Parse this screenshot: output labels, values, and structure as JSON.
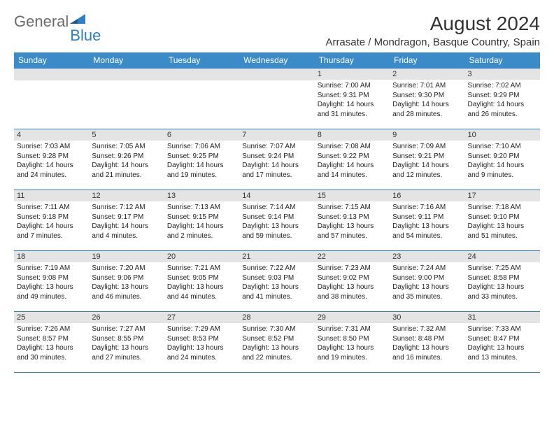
{
  "logo": {
    "text1": "General",
    "text2": "Blue",
    "color_general": "#6b6b6b",
    "color_blue": "#2f7fc2"
  },
  "title": "August 2024",
  "location": "Arrasate / Mondragon, Basque Country, Spain",
  "colors": {
    "header_bg": "#3b8bc8",
    "daynum_bg": "#e4e4e4",
    "week_border": "#2f7fc2",
    "text": "#222222"
  },
  "day_names": [
    "Sunday",
    "Monday",
    "Tuesday",
    "Wednesday",
    "Thursday",
    "Friday",
    "Saturday"
  ],
  "weeks": [
    [
      {
        "num": "",
        "sunrise": "",
        "sunset": "",
        "daylight": ""
      },
      {
        "num": "",
        "sunrise": "",
        "sunset": "",
        "daylight": ""
      },
      {
        "num": "",
        "sunrise": "",
        "sunset": "",
        "daylight": ""
      },
      {
        "num": "",
        "sunrise": "",
        "sunset": "",
        "daylight": ""
      },
      {
        "num": "1",
        "sunrise": "Sunrise: 7:00 AM",
        "sunset": "Sunset: 9:31 PM",
        "daylight": "Daylight: 14 hours and 31 minutes."
      },
      {
        "num": "2",
        "sunrise": "Sunrise: 7:01 AM",
        "sunset": "Sunset: 9:30 PM",
        "daylight": "Daylight: 14 hours and 28 minutes."
      },
      {
        "num": "3",
        "sunrise": "Sunrise: 7:02 AM",
        "sunset": "Sunset: 9:29 PM",
        "daylight": "Daylight: 14 hours and 26 minutes."
      }
    ],
    [
      {
        "num": "4",
        "sunrise": "Sunrise: 7:03 AM",
        "sunset": "Sunset: 9:28 PM",
        "daylight": "Daylight: 14 hours and 24 minutes."
      },
      {
        "num": "5",
        "sunrise": "Sunrise: 7:05 AM",
        "sunset": "Sunset: 9:26 PM",
        "daylight": "Daylight: 14 hours and 21 minutes."
      },
      {
        "num": "6",
        "sunrise": "Sunrise: 7:06 AM",
        "sunset": "Sunset: 9:25 PM",
        "daylight": "Daylight: 14 hours and 19 minutes."
      },
      {
        "num": "7",
        "sunrise": "Sunrise: 7:07 AM",
        "sunset": "Sunset: 9:24 PM",
        "daylight": "Daylight: 14 hours and 17 minutes."
      },
      {
        "num": "8",
        "sunrise": "Sunrise: 7:08 AM",
        "sunset": "Sunset: 9:22 PM",
        "daylight": "Daylight: 14 hours and 14 minutes."
      },
      {
        "num": "9",
        "sunrise": "Sunrise: 7:09 AM",
        "sunset": "Sunset: 9:21 PM",
        "daylight": "Daylight: 14 hours and 12 minutes."
      },
      {
        "num": "10",
        "sunrise": "Sunrise: 7:10 AM",
        "sunset": "Sunset: 9:20 PM",
        "daylight": "Daylight: 14 hours and 9 minutes."
      }
    ],
    [
      {
        "num": "11",
        "sunrise": "Sunrise: 7:11 AM",
        "sunset": "Sunset: 9:18 PM",
        "daylight": "Daylight: 14 hours and 7 minutes."
      },
      {
        "num": "12",
        "sunrise": "Sunrise: 7:12 AM",
        "sunset": "Sunset: 9:17 PM",
        "daylight": "Daylight: 14 hours and 4 minutes."
      },
      {
        "num": "13",
        "sunrise": "Sunrise: 7:13 AM",
        "sunset": "Sunset: 9:15 PM",
        "daylight": "Daylight: 14 hours and 2 minutes."
      },
      {
        "num": "14",
        "sunrise": "Sunrise: 7:14 AM",
        "sunset": "Sunset: 9:14 PM",
        "daylight": "Daylight: 13 hours and 59 minutes."
      },
      {
        "num": "15",
        "sunrise": "Sunrise: 7:15 AM",
        "sunset": "Sunset: 9:13 PM",
        "daylight": "Daylight: 13 hours and 57 minutes."
      },
      {
        "num": "16",
        "sunrise": "Sunrise: 7:16 AM",
        "sunset": "Sunset: 9:11 PM",
        "daylight": "Daylight: 13 hours and 54 minutes."
      },
      {
        "num": "17",
        "sunrise": "Sunrise: 7:18 AM",
        "sunset": "Sunset: 9:10 PM",
        "daylight": "Daylight: 13 hours and 51 minutes."
      }
    ],
    [
      {
        "num": "18",
        "sunrise": "Sunrise: 7:19 AM",
        "sunset": "Sunset: 9:08 PM",
        "daylight": "Daylight: 13 hours and 49 minutes."
      },
      {
        "num": "19",
        "sunrise": "Sunrise: 7:20 AM",
        "sunset": "Sunset: 9:06 PM",
        "daylight": "Daylight: 13 hours and 46 minutes."
      },
      {
        "num": "20",
        "sunrise": "Sunrise: 7:21 AM",
        "sunset": "Sunset: 9:05 PM",
        "daylight": "Daylight: 13 hours and 44 minutes."
      },
      {
        "num": "21",
        "sunrise": "Sunrise: 7:22 AM",
        "sunset": "Sunset: 9:03 PM",
        "daylight": "Daylight: 13 hours and 41 minutes."
      },
      {
        "num": "22",
        "sunrise": "Sunrise: 7:23 AM",
        "sunset": "Sunset: 9:02 PM",
        "daylight": "Daylight: 13 hours and 38 minutes."
      },
      {
        "num": "23",
        "sunrise": "Sunrise: 7:24 AM",
        "sunset": "Sunset: 9:00 PM",
        "daylight": "Daylight: 13 hours and 35 minutes."
      },
      {
        "num": "24",
        "sunrise": "Sunrise: 7:25 AM",
        "sunset": "Sunset: 8:58 PM",
        "daylight": "Daylight: 13 hours and 33 minutes."
      }
    ],
    [
      {
        "num": "25",
        "sunrise": "Sunrise: 7:26 AM",
        "sunset": "Sunset: 8:57 PM",
        "daylight": "Daylight: 13 hours and 30 minutes."
      },
      {
        "num": "26",
        "sunrise": "Sunrise: 7:27 AM",
        "sunset": "Sunset: 8:55 PM",
        "daylight": "Daylight: 13 hours and 27 minutes."
      },
      {
        "num": "27",
        "sunrise": "Sunrise: 7:29 AM",
        "sunset": "Sunset: 8:53 PM",
        "daylight": "Daylight: 13 hours and 24 minutes."
      },
      {
        "num": "28",
        "sunrise": "Sunrise: 7:30 AM",
        "sunset": "Sunset: 8:52 PM",
        "daylight": "Daylight: 13 hours and 22 minutes."
      },
      {
        "num": "29",
        "sunrise": "Sunrise: 7:31 AM",
        "sunset": "Sunset: 8:50 PM",
        "daylight": "Daylight: 13 hours and 19 minutes."
      },
      {
        "num": "30",
        "sunrise": "Sunrise: 7:32 AM",
        "sunset": "Sunset: 8:48 PM",
        "daylight": "Daylight: 13 hours and 16 minutes."
      },
      {
        "num": "31",
        "sunrise": "Sunrise: 7:33 AM",
        "sunset": "Sunset: 8:47 PM",
        "daylight": "Daylight: 13 hours and 13 minutes."
      }
    ]
  ]
}
